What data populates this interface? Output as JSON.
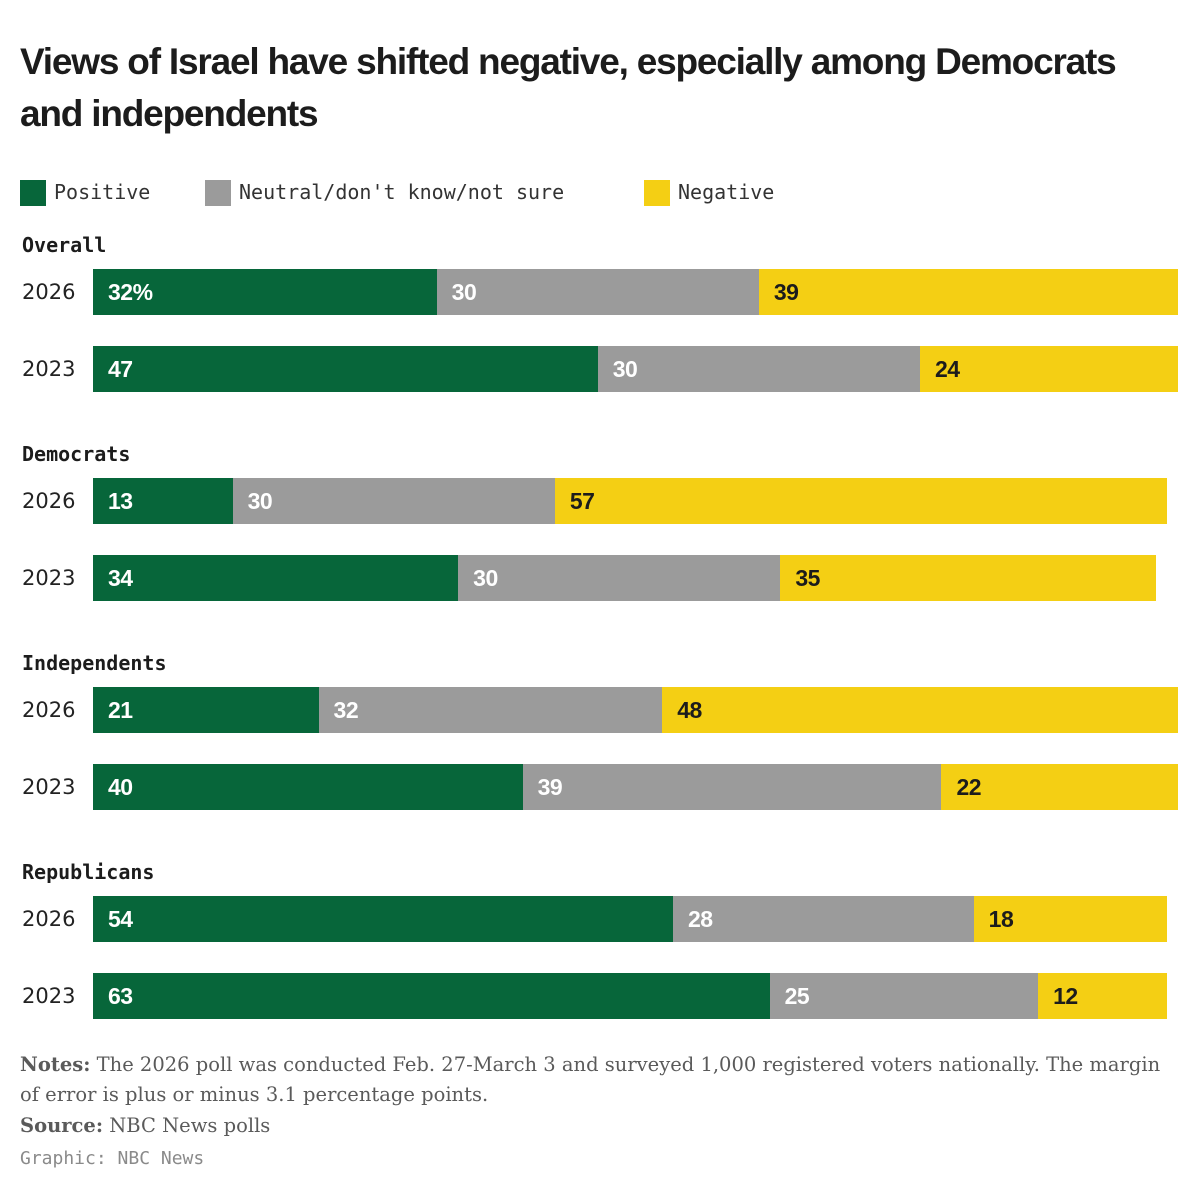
{
  "title": "Views of Israel have shifted negative, especially among Democrats and independents",
  "legend": [
    {
      "label": "Positive",
      "color": "#07663a"
    },
    {
      "label": "Neutral/don't know/not sure",
      "color": "#9b9b9b"
    },
    {
      "label": "Negative",
      "color": "#f4cf14"
    }
  ],
  "chart_data": {
    "type": "bar",
    "orientation": "horizontal-stacked",
    "title": "Views of Israel have shifted negative, especially among Democrats and independents",
    "series_names": [
      "Positive",
      "Neutral/don't know/not sure",
      "Negative"
    ],
    "value_unit": "%",
    "groups": [
      {
        "name": "Overall",
        "rows": [
          {
            "year": "2026",
            "values": [
              32,
              30,
              39
            ],
            "labels": [
              "32%",
              "30",
              "39"
            ]
          },
          {
            "year": "2023",
            "values": [
              47,
              30,
              24
            ],
            "labels": [
              "47",
              "30",
              "24"
            ]
          }
        ]
      },
      {
        "name": "Democrats",
        "rows": [
          {
            "year": "2026",
            "values": [
              13,
              30,
              57
            ],
            "labels": [
              "13",
              "30",
              "57"
            ]
          },
          {
            "year": "2023",
            "values": [
              34,
              30,
              35
            ],
            "labels": [
              "34",
              "30",
              "35"
            ]
          }
        ]
      },
      {
        "name": "Independents",
        "rows": [
          {
            "year": "2026",
            "values": [
              21,
              32,
              48
            ],
            "labels": [
              "21",
              "32",
              "48"
            ]
          },
          {
            "year": "2023",
            "values": [
              40,
              39,
              22
            ],
            "labels": [
              "40",
              "39",
              "22"
            ]
          }
        ]
      },
      {
        "name": "Republicans",
        "rows": [
          {
            "year": "2026",
            "values": [
              54,
              28,
              18
            ],
            "labels": [
              "54",
              "28",
              "18"
            ]
          },
          {
            "year": "2023",
            "values": [
              63,
              25,
              12
            ],
            "labels": [
              "63",
              "25",
              "12"
            ]
          }
        ]
      }
    ]
  },
  "notes": {
    "label": "Notes:",
    "text": "The 2026 poll was conducted Feb. 27-March 3 and surveyed 1,000 registered voters nationally. The margin of error is plus or minus 3.1 percentage points."
  },
  "source": {
    "label": "Source:",
    "text": "NBC News polls"
  },
  "credit": "Graphic: NBC News"
}
